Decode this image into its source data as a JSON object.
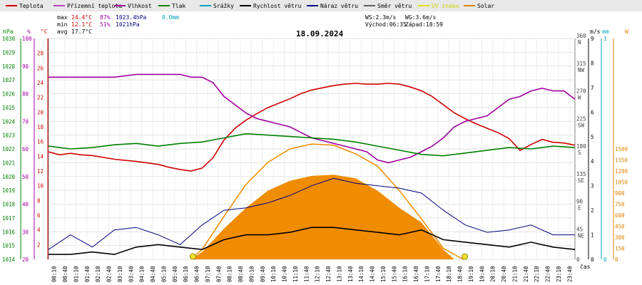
{
  "chart_data": {
    "type": "line",
    "title": "18.09.2024",
    "legend_placement": "top",
    "grid": true,
    "xlabel": "čas",
    "x": [
      "00:10",
      "00:40",
      "01:10",
      "01:40",
      "02:10",
      "02:40",
      "03:10",
      "03:40",
      "04:10",
      "04:40",
      "05:10",
      "05:40",
      "06:10",
      "06:40",
      "07:10",
      "07:40",
      "08:10",
      "08:40",
      "09:10",
      "09:40",
      "10:10",
      "10:40",
      "11:10",
      "11:40",
      "12:10",
      "12:40",
      "13:10",
      "13:40",
      "14:10",
      "14:40",
      "15:10",
      "15:40",
      "16:10",
      "16:40",
      "17:10",
      "17:40",
      "18:10",
      "18:40",
      "19:10",
      "19:40",
      "20:10",
      "20:40",
      "21:10",
      "21:40",
      "22:10",
      "22:40",
      "23:10",
      "23:40"
    ],
    "stats": {
      "max": {
        "label": "max",
        "temp": "24.4°C",
        "hum": "87%",
        "press": "1023.4hPa",
        "rain": "0.0mm"
      },
      "min": {
        "label": "min",
        "temp": "12.1°C",
        "hum": "51%",
        "press": "1021hPa"
      },
      "avg": {
        "label": "avg",
        "temp": "17.7°C"
      },
      "ws": "WS:2.3m/s",
      "wg": "WG:3.6m/s",
      "sunrise": "Východ:06:35",
      "sunset": "Západ:18:59"
    },
    "axes": {
      "pressure": {
        "label": "hPa",
        "ticks": [
          "1014",
          "1015",
          "1016",
          "1017",
          "1018",
          "1019",
          "1020",
          "1021",
          "1022",
          "1023",
          "1024",
          "1025",
          "1026",
          "1027",
          "1028",
          "1029",
          "1030"
        ],
        "ylim": [
          1014,
          1030
        ],
        "color": "#008000"
      },
      "humidity": {
        "label": "%",
        "ticks": [
          "20",
          "30",
          "40",
          "50",
          "60",
          "70",
          "80",
          "90",
          "100"
        ],
        "ylim": [
          20,
          100
        ],
        "color": "#a000a0"
      },
      "temperature": {
        "label": "°C",
        "ticks": [
          "2",
          "4",
          "6",
          "8",
          "10",
          "12",
          "14",
          "16",
          "18",
          "20",
          "22",
          "24",
          "26",
          "28"
        ],
        "ylim": [
          0,
          30
        ],
        "color": "#d00000"
      },
      "wind_dir": {
        "ticks": [
          "360\nN",
          "315\nNW",
          "270\nW",
          "225\nSW",
          "180\nS",
          "135\nSE",
          "90\nE",
          "45\nNE",
          "0"
        ],
        "ylim": [
          0,
          360
        ],
        "color": "#404040"
      },
      "wind_speed": {
        "label": "m/s",
        "ticks": [
          "0",
          "1",
          "2",
          "3",
          "4",
          "5",
          "6",
          "7",
          "8",
          "9"
        ],
        "ylim": [
          0,
          9
        ],
        "color": "#000000"
      },
      "rain": {
        "label": "mm",
        "ticks": [
          "0",
          "1"
        ],
        "ylim": [
          0,
          1
        ],
        "color": "#00a0c0"
      },
      "solar": {
        "label": "W",
        "ticks": [
          "0",
          "150",
          "300",
          "450",
          "600",
          "750",
          "900",
          "1050",
          "1200",
          "1350",
          "1500"
        ],
        "ylim": [
          0,
          1500
        ],
        "color": "#e08000"
      }
    },
    "legend": [
      {
        "name": "Teplota",
        "color": "#d00000"
      },
      {
        "name": "Přízemní teplota",
        "color": "#c040c0"
      },
      {
        "name": "Vlhkost",
        "color": "#a000a0"
      },
      {
        "name": "Tlak",
        "color": "#008000"
      },
      {
        "name": "Srážky",
        "color": "#00a0c0"
      },
      {
        "name": "Rychlost větru",
        "color": "#000000"
      },
      {
        "name": "Náraz větru",
        "color": "#000080"
      },
      {
        "name": "Směr větru",
        "color": "#606060"
      },
      {
        "name": "UV index",
        "color": "#e0e000"
      },
      {
        "name": "Solar",
        "color": "#e08000"
      }
    ],
    "series": [
      {
        "name": "Teplota",
        "axis": "temperature",
        "x": [
          0,
          0.5,
          1,
          1.5,
          2,
          3,
          4,
          5,
          5.5,
          6,
          6.5,
          7,
          7.5,
          8,
          8.5,
          9,
          9.5,
          10,
          10.5,
          11,
          11.5,
          12,
          12.5,
          13,
          13.5,
          14,
          14.5,
          15,
          15.5,
          16,
          16.5,
          17,
          17.5,
          18,
          18.5,
          19,
          19.5,
          20,
          20.5,
          21,
          21.5,
          22,
          22.5,
          23,
          23.5,
          24
        ],
        "values": [
          14.6,
          14.2,
          14.4,
          14.2,
          14.1,
          13.6,
          13.3,
          12.9,
          12.5,
          12.2,
          12.0,
          12.4,
          13.8,
          16.2,
          17.8,
          18.9,
          19.8,
          20.6,
          21.2,
          21.8,
          22.5,
          23.0,
          23.3,
          23.6,
          23.8,
          23.9,
          23.8,
          23.8,
          23.9,
          23.8,
          23.4,
          22.9,
          22.1,
          21.0,
          19.9,
          19.1,
          18.4,
          17.8,
          17.2,
          16.4,
          14.8,
          15.6,
          16.3,
          15.9,
          15.8,
          15.5
        ]
      },
      {
        "name": "Vlhkost",
        "axis": "humidity",
        "x": [
          0,
          0.5,
          1,
          2,
          3,
          4,
          5,
          5.5,
          6,
          6.5,
          7,
          7.5,
          8,
          8.5,
          9,
          9.5,
          10,
          10.5,
          11,
          11.5,
          12,
          12.5,
          13,
          13.5,
          14,
          14.5,
          15,
          15.5,
          16,
          16.5,
          17,
          17.5,
          18,
          18.5,
          19,
          19.5,
          20,
          20.5,
          21,
          21.5,
          22,
          22.5,
          23,
          23.5,
          24
        ],
        "values": [
          86,
          86,
          86,
          86,
          86,
          87,
          87,
          87,
          87,
          86,
          86,
          84,
          79,
          76,
          73,
          71,
          70,
          69,
          68,
          66,
          64,
          63,
          62,
          61,
          60,
          59,
          56,
          55,
          56,
          57,
          59,
          61,
          64,
          68,
          70,
          71,
          72,
          75,
          78,
          79,
          81,
          82,
          81,
          81,
          78
        ]
      },
      {
        "name": "Tlak",
        "axis": "pressure",
        "x": [
          0,
          1,
          2,
          3,
          4,
          5,
          6,
          7,
          8,
          9,
          10,
          11,
          12,
          13,
          14,
          15,
          16,
          17,
          18,
          19,
          20,
          21,
          22,
          23,
          24
        ],
        "values": [
          1022.2,
          1022.0,
          1022.1,
          1022.3,
          1022.4,
          1022.2,
          1022.4,
          1022.5,
          1022.8,
          1023.1,
          1023.0,
          1022.9,
          1022.8,
          1022.7,
          1022.5,
          1022.2,
          1021.9,
          1021.6,
          1021.5,
          1021.7,
          1021.9,
          1022.1,
          1022.0,
          1022.2,
          1022.1
        ]
      },
      {
        "name": "Rychlost větru",
        "axis": "wind_speed",
        "x": [
          0,
          1,
          2,
          3,
          4,
          5,
          6,
          7,
          8,
          9,
          10,
          11,
          12,
          13,
          14,
          15,
          16,
          17,
          18,
          19,
          20,
          21,
          22,
          23,
          24
        ],
        "values": [
          0.2,
          0.2,
          0.3,
          0.2,
          0.5,
          0.6,
          0.5,
          0.4,
          0.8,
          1.0,
          1.0,
          1.1,
          1.3,
          1.3,
          1.2,
          1.1,
          1.0,
          1.2,
          0.8,
          0.7,
          0.6,
          0.5,
          0.7,
          0.5,
          0.4
        ]
      },
      {
        "name": "Náraz větru",
        "axis": "wind_speed",
        "x": [
          0,
          1,
          2,
          3,
          4,
          5,
          6,
          7,
          8,
          9,
          10,
          11,
          12,
          13,
          14,
          15,
          16,
          17,
          18,
          19,
          20,
          21,
          22,
          23,
          24
        ],
        "values": [
          0.4,
          1.0,
          0.5,
          1.2,
          1.3,
          1.0,
          0.6,
          1.4,
          2.0,
          2.1,
          2.3,
          2.6,
          3.0,
          3.3,
          3.1,
          3.0,
          2.9,
          2.7,
          2.0,
          1.4,
          1.1,
          1.2,
          1.4,
          1.0,
          1.0
        ]
      },
      {
        "name": "Solar",
        "axis": "solar",
        "x": [
          6.5,
          7,
          8,
          9,
          10,
          11,
          12,
          13,
          14,
          15,
          16,
          17,
          18,
          18.5
        ],
        "values": [
          0,
          60,
          250,
          420,
          560,
          640,
          680,
          690,
          660,
          560,
          420,
          300,
          80,
          0
        ]
      },
      {
        "name": "Solar max",
        "axis": "solar",
        "x": [
          6.5,
          7,
          8,
          9,
          10,
          11,
          12,
          13,
          14,
          15,
          16,
          17,
          18,
          18.9
        ],
        "values": [
          0,
          80,
          350,
          610,
          790,
          900,
          940,
          930,
          860,
          760,
          560,
          330,
          90,
          0
        ]
      }
    ]
  }
}
